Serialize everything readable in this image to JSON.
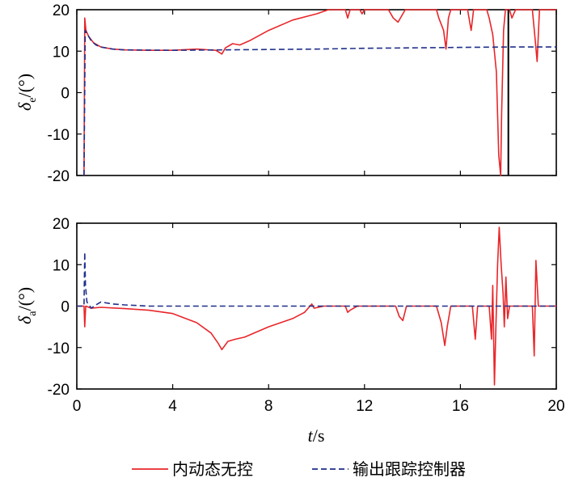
{
  "chart_data": [
    {
      "type": "line",
      "ylabel_symbol": "δ",
      "ylabel_sub": "e",
      "ylabel_unit": "/(°)",
      "xlim": [
        0,
        20
      ],
      "ylim": [
        -20,
        20
      ],
      "xticks": [
        0,
        4,
        8,
        12,
        16,
        20
      ],
      "yticks": [
        -20,
        -10,
        0,
        10,
        20
      ],
      "xtick_labels": [
        "",
        "",
        "",
        "",
        "",
        ""
      ],
      "ytick_labels": [
        "-20",
        "-10",
        "0",
        "10",
        "20"
      ],
      "series": [
        {
          "name": "内动态无控",
          "color": "#e8262a",
          "style": "solid",
          "points": [
            [
              0.3,
              -20
            ],
            [
              0.33,
              18
            ],
            [
              0.38,
              15
            ],
            [
              0.5,
              13.5
            ],
            [
              0.7,
              12
            ],
            [
              1,
              11
            ],
            [
              1.5,
              10.5
            ],
            [
              2,
              10.3
            ],
            [
              3,
              10.2
            ],
            [
              4,
              10.2
            ],
            [
              5,
              10.5
            ],
            [
              5.8,
              10.2
            ],
            [
              6.05,
              9.3
            ],
            [
              6.2,
              10.8
            ],
            [
              6.5,
              11.8
            ],
            [
              6.8,
              11.5
            ],
            [
              7.2,
              12.5
            ],
            [
              8,
              15
            ],
            [
              9,
              17.5
            ],
            [
              10,
              19
            ],
            [
              10.5,
              20
            ],
            [
              11.2,
              20
            ],
            [
              11.3,
              18
            ],
            [
              11.4,
              20
            ],
            [
              11.8,
              20
            ],
            [
              11.9,
              19
            ],
            [
              12,
              20
            ],
            [
              13,
              20
            ],
            [
              13.2,
              18
            ],
            [
              13.4,
              17
            ],
            [
              13.6,
              19
            ],
            [
              13.7,
              20
            ],
            [
              15,
              20
            ],
            [
              15.1,
              18
            ],
            [
              15.3,
              15
            ],
            [
              15.4,
              10.5
            ],
            [
              15.5,
              18
            ],
            [
              15.6,
              20
            ],
            [
              16.3,
              20
            ],
            [
              16.45,
              15
            ],
            [
              16.55,
              20
            ],
            [
              17.1,
              20
            ],
            [
              17.2,
              18
            ],
            [
              17.35,
              14
            ],
            [
              17.5,
              5
            ],
            [
              17.6,
              -15
            ],
            [
              17.68,
              -20
            ],
            [
              17.72,
              -5
            ],
            [
              17.8,
              15
            ],
            [
              17.88,
              20
            ],
            [
              18.05,
              20
            ],
            [
              18.15,
              18
            ],
            [
              18.3,
              20
            ],
            [
              19.0,
              20
            ],
            [
              19.1,
              14
            ],
            [
              19.2,
              7.5
            ],
            [
              19.3,
              20
            ],
            [
              20,
              20
            ]
          ]
        },
        {
          "name": "输出跟踪控制器",
          "color": "#1f2f8a",
          "style": "dashed",
          "points": [
            [
              0.3,
              -20
            ],
            [
              0.35,
              15
            ],
            [
              0.45,
              14
            ],
            [
              0.6,
              12.5
            ],
            [
              0.8,
              11.5
            ],
            [
              1,
              11
            ],
            [
              1.5,
              10.5
            ],
            [
              2,
              10.3
            ],
            [
              4,
              10.2
            ],
            [
              6,
              10.3
            ],
            [
              8,
              10.4
            ],
            [
              10,
              10.5
            ],
            [
              12,
              10.7
            ],
            [
              14,
              10.8
            ],
            [
              16,
              10.9
            ],
            [
              18,
              11
            ],
            [
              20,
              11
            ]
          ]
        }
      ],
      "vertical_line_x": 18
    },
    {
      "type": "line",
      "ylabel_symbol": "δ",
      "ylabel_sub": "a",
      "ylabel_unit": "/(°)",
      "xlabel_italic": "t",
      "xlabel_rest": "/s",
      "xlim": [
        0,
        20
      ],
      "ylim": [
        -20,
        20
      ],
      "xticks": [
        0,
        4,
        8,
        12,
        16,
        20
      ],
      "yticks": [
        -20,
        -10,
        0,
        10,
        20
      ],
      "xtick_labels": [
        "0",
        "4",
        "8",
        "12",
        "16",
        "20"
      ],
      "ytick_labels": [
        "-20",
        "-10",
        "0",
        "10",
        "20"
      ],
      "series": [
        {
          "name": "内动态无控",
          "color": "#e8262a",
          "style": "solid",
          "points": [
            [
              0,
              0
            ],
            [
              0.3,
              0
            ],
            [
              0.33,
              -5
            ],
            [
              0.37,
              0
            ],
            [
              0.6,
              -0.5
            ],
            [
              1,
              -0.3
            ],
            [
              2,
              -0.6
            ],
            [
              3,
              -1
            ],
            [
              4,
              -1.8
            ],
            [
              5,
              -4
            ],
            [
              5.6,
              -6.5
            ],
            [
              5.9,
              -9
            ],
            [
              6.05,
              -10.5
            ],
            [
              6.3,
              -8.5
            ],
            [
              6.6,
              -8
            ],
            [
              7,
              -7.5
            ],
            [
              8,
              -5
            ],
            [
              9,
              -3
            ],
            [
              9.5,
              -1.5
            ],
            [
              9.8,
              0.5
            ],
            [
              9.9,
              -0.5
            ],
            [
              10.3,
              0
            ],
            [
              11.2,
              0
            ],
            [
              11.3,
              -1.5
            ],
            [
              11.4,
              -1
            ],
            [
              11.7,
              0
            ],
            [
              13.3,
              0
            ],
            [
              13.45,
              -2.5
            ],
            [
              13.6,
              -3.5
            ],
            [
              13.75,
              0
            ],
            [
              15,
              0
            ],
            [
              15.2,
              -4
            ],
            [
              15.35,
              -9.5
            ],
            [
              15.45,
              -5
            ],
            [
              15.6,
              0
            ],
            [
              16.5,
              0
            ],
            [
              16.62,
              -8
            ],
            [
              16.72,
              0
            ],
            [
              17.2,
              0
            ],
            [
              17.3,
              -8
            ],
            [
              17.35,
              5
            ],
            [
              17.42,
              -19
            ],
            [
              17.48,
              -5
            ],
            [
              17.55,
              10
            ],
            [
              17.62,
              19
            ],
            [
              17.7,
              10
            ],
            [
              17.78,
              3
            ],
            [
              17.83,
              -5
            ],
            [
              17.9,
              7
            ],
            [
              17.97,
              -3
            ],
            [
              18.05,
              0
            ],
            [
              19,
              0
            ],
            [
              19.08,
              -12
            ],
            [
              19.15,
              11
            ],
            [
              19.25,
              0
            ],
            [
              20,
              0
            ]
          ]
        },
        {
          "name": "输出跟踪控制器",
          "color": "#1f2f8a",
          "style": "dashed",
          "points": [
            [
              0,
              0
            ],
            [
              0.3,
              0
            ],
            [
              0.33,
              13
            ],
            [
              0.36,
              5
            ],
            [
              0.42,
              1
            ],
            [
              0.6,
              -0.5
            ],
            [
              0.8,
              0.3
            ],
            [
              1,
              1
            ],
            [
              1.5,
              0.5
            ],
            [
              2,
              0.3
            ],
            [
              3,
              0
            ],
            [
              4,
              0
            ],
            [
              20,
              0
            ]
          ]
        }
      ]
    }
  ],
  "legend": [
    {
      "label": "内动态无控",
      "color": "#e8262a",
      "style": "solid"
    },
    {
      "label": "输出跟踪控制器",
      "color": "#1f2f8a",
      "style": "dashed"
    }
  ]
}
